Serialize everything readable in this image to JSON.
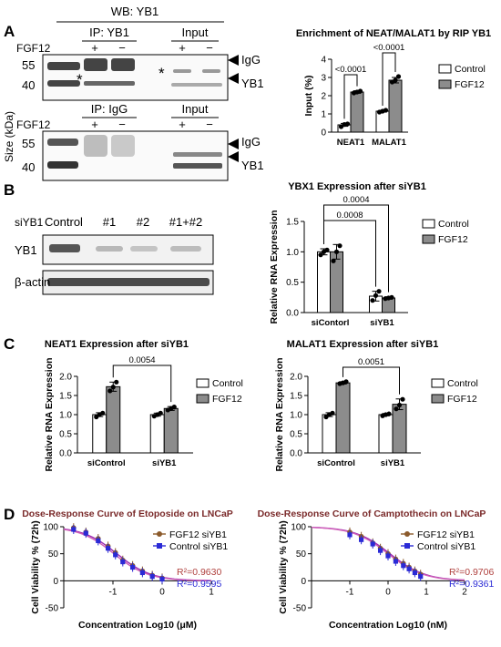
{
  "panel_labels": [
    "A",
    "B",
    "C",
    "D"
  ],
  "panelA": {
    "wb_title": "WB: YB1",
    "ip_yb1": "IP: YB1",
    "ip_igg": "IP: IgG",
    "input": "Input",
    "fgf12": "FGF12",
    "plus": "+",
    "minus": "−",
    "mw_55": "55",
    "mw_40": "40",
    "size_label": "Size (kDa)",
    "igg": "IgG",
    "yb1": "YB1",
    "star": "*"
  },
  "panelB": {
    "siyb1": "siYB1",
    "lanes": [
      "Control",
      "#1",
      "#2",
      "#1+#2"
    ],
    "yb1": "YB1",
    "actin": "β-actin"
  },
  "chart_data": [
    {
      "id": "rip",
      "type": "bar",
      "title": "Enrichment of NEAT/MALAT1 by RIP YB1",
      "ylabel": "Input (%)",
      "categories": [
        "NEAT1",
        "MALAT1"
      ],
      "ylim": [
        0,
        4
      ],
      "yticks": [
        0,
        1,
        2,
        3,
        4
      ],
      "series": [
        {
          "name": "Control",
          "values": [
            0.4,
            1.15
          ],
          "errors": [
            0.08,
            0.05
          ],
          "points": [
            [
              0.3,
              0.42,
              0.45
            ],
            [
              1.1,
              1.15,
              1.2
            ]
          ],
          "color": "#ffffff"
        },
        {
          "name": "FGF12",
          "values": [
            2.2,
            2.85
          ],
          "errors": [
            0.07,
            0.15
          ],
          "points": [
            [
              2.15,
              2.2,
              2.25
            ],
            [
              2.75,
              2.85,
              3.05
            ]
          ],
          "color": "#8c8c8c"
        }
      ],
      "annotations": [
        "<0.0001",
        "<0.0001"
      ]
    },
    {
      "id": "ybx1",
      "type": "bar",
      "title": "YBX1 Expression after siYB1",
      "ylabel": "Relative RNA Expression",
      "categories": [
        "siContorl",
        "siYB1"
      ],
      "ylim": [
        0,
        1.5
      ],
      "yticks": [
        0.0,
        0.5,
        1.0,
        1.5
      ],
      "series": [
        {
          "name": "Control",
          "values": [
            1.0,
            0.27
          ],
          "errors": [
            0.05,
            0.08
          ],
          "points": [
            [
              0.95,
              1.0,
              1.03
            ],
            [
              0.2,
              0.28,
              0.35
            ]
          ],
          "color": "#ffffff"
        },
        {
          "name": "FGF12",
          "values": [
            1.0,
            0.24
          ],
          "errors": [
            0.12,
            0.02
          ],
          "points": [
            [
              0.85,
              1.0,
              1.1
            ],
            [
              0.23,
              0.24,
              0.25
            ]
          ],
          "color": "#8c8c8c"
        }
      ],
      "annotations": [
        "0.0008",
        "0.0004"
      ]
    },
    {
      "id": "neat1",
      "type": "bar",
      "title": "NEAT1 Expression after siYB1",
      "ylabel": "Relative RNA Expression",
      "categories": [
        "siControl",
        "siYB1"
      ],
      "ylim": [
        0,
        2.0
      ],
      "yticks": [
        0.0,
        0.5,
        1.0,
        1.5,
        2.0
      ],
      "series": [
        {
          "name": "Control",
          "values": [
            1.0,
            1.0
          ],
          "errors": [
            0.05,
            0.04
          ],
          "points": [
            [
              0.94,
              1.0,
              1.04
            ],
            [
              0.96,
              1.0,
              1.04
            ]
          ],
          "color": "#ffffff"
        },
        {
          "name": "FGF12",
          "values": [
            1.73,
            1.16
          ],
          "errors": [
            0.12,
            0.05
          ],
          "points": [
            [
              1.62,
              1.72,
              1.85
            ],
            [
              1.12,
              1.16,
              1.2
            ]
          ],
          "color": "#8c8c8c"
        }
      ],
      "annotations": [
        "0.0054"
      ]
    },
    {
      "id": "malat1",
      "type": "bar",
      "title": "MALAT1 Expression after siYB1",
      "ylabel": "Relative RNA Expression",
      "categories": [
        "siControl",
        "siYB1"
      ],
      "ylim": [
        0,
        2.0
      ],
      "yticks": [
        0.0,
        0.5,
        1.0,
        1.5,
        2.0
      ],
      "series": [
        {
          "name": "Control",
          "values": [
            1.0,
            1.0
          ],
          "errors": [
            0.05,
            0.03
          ],
          "points": [
            [
              0.94,
              1.0,
              1.04
            ],
            [
              0.97,
              1.0,
              1.02
            ]
          ],
          "color": "#ffffff"
        },
        {
          "name": "FGF12",
          "values": [
            1.83,
            1.27
          ],
          "errors": [
            0.03,
            0.14
          ],
          "points": [
            [
              1.81,
              1.83,
              1.86
            ],
            [
              1.15,
              1.25,
              1.4
            ]
          ],
          "color": "#8c8c8c"
        }
      ],
      "annotations": [
        "0.0051"
      ]
    },
    {
      "id": "etoposide",
      "type": "line",
      "title": "Dose-Response Curve of Etoposide on LNCaP",
      "xlabel": "Concentration Log10 (μM)",
      "ylabel": "Cell Viability % (72h)",
      "xlim": [
        -2,
        1
      ],
      "ylim": [
        -50,
        100
      ],
      "xticks": [
        -1,
        0,
        1
      ],
      "yticks": [
        -50,
        0,
        50,
        100
      ],
      "curves": [
        {
          "color": "#9b2cb0",
          "ic50": -0.92,
          "hill": 1.25
        },
        {
          "color": "#cf5fb8",
          "ic50": -0.98,
          "hill": 1.25
        }
      ],
      "series": [
        {
          "name": "FGF12 siYB1",
          "color": "#8b5a2b",
          "marker": "circle",
          "x": [
            -1.8,
            -1.55,
            -1.3,
            -1.1,
            -0.95,
            -0.8,
            -0.6,
            -0.4,
            -0.2,
            0.0
          ],
          "y": [
            98,
            90,
            78,
            64,
            52,
            38,
            28,
            18,
            10,
            5
          ]
        },
        {
          "name": "Control siYB1",
          "color": "#2a2ad6",
          "marker": "square",
          "x": [
            -1.8,
            -1.55,
            -1.3,
            -1.1,
            -0.95,
            -0.8,
            -0.6,
            -0.4,
            -0.2,
            0.0
          ],
          "y": [
            95,
            88,
            74,
            60,
            48,
            35,
            25,
            15,
            8,
            3
          ]
        }
      ],
      "r2": [
        {
          "text": "R²=0.9630",
          "color": "#b0413e"
        },
        {
          "text": "R²=0.9595",
          "color": "#2a2ad6"
        }
      ]
    },
    {
      "id": "camptothecin",
      "type": "line",
      "title": "Dose-Response Curve of Camptothecin on LNCaP",
      "xlabel": "Concentration Log10 (nM)",
      "ylabel": "Cell Viability % (72h)",
      "xlim": [
        -2,
        2
      ],
      "ylim": [
        -50,
        100
      ],
      "xticks": [
        -1,
        0,
        1,
        2
      ],
      "yticks": [
        -50,
        0,
        50,
        100
      ],
      "curves": [
        {
          "color": "#9b2cb0",
          "ic50": 0.05,
          "hill": 0.95
        },
        {
          "color": "#cf5fb8",
          "ic50": 0.0,
          "hill": 0.95
        }
      ],
      "series": [
        {
          "name": "FGF12 siYB1",
          "color": "#8b5a2b",
          "marker": "circle",
          "x": [
            -1.0,
            -0.7,
            -0.4,
            -0.2,
            0.0,
            0.2,
            0.4,
            0.55,
            0.7,
            0.85
          ],
          "y": [
            90,
            82,
            70,
            60,
            50,
            40,
            32,
            25,
            18,
            12
          ]
        },
        {
          "name": "Control siYB1",
          "color": "#2a2ad6",
          "marker": "square",
          "x": [
            -1.0,
            -0.7,
            -0.4,
            -0.2,
            0.0,
            0.2,
            0.4,
            0.55,
            0.7,
            0.85
          ],
          "y": [
            85,
            76,
            68,
            56,
            46,
            36,
            28,
            22,
            15,
            8
          ]
        }
      ],
      "r2": [
        {
          "text": "R²=0.9706",
          "color": "#b0413e"
        },
        {
          "text": "R²=0.9361",
          "color": "#2a2ad6"
        }
      ]
    }
  ]
}
